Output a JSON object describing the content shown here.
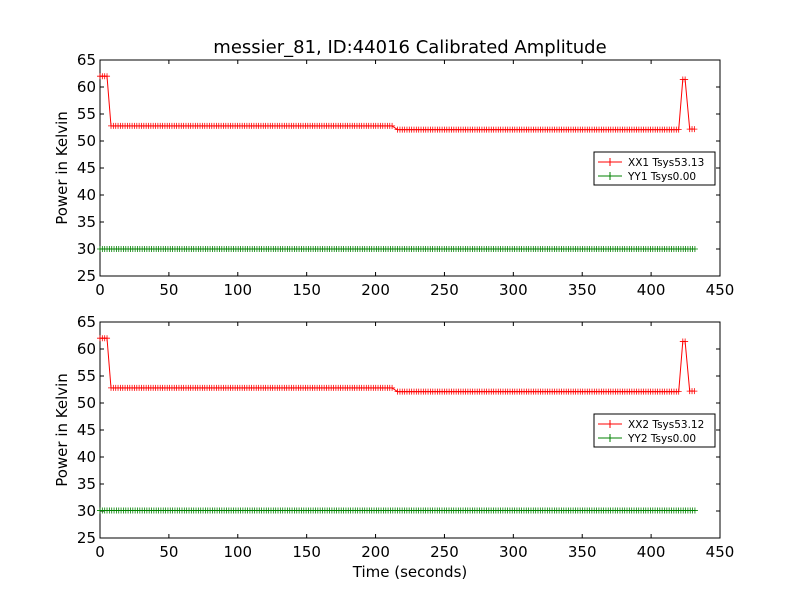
{
  "chart_data": [
    {
      "type": "line",
      "title": "messier_81, ID:44016 Calibrated Amplitude",
      "xlabel": "",
      "ylabel": "Power in Kelvin",
      "xlim": [
        0,
        450
      ],
      "ylim": [
        25,
        65
      ],
      "xticks": [
        "0",
        "50",
        "100",
        "150",
        "200",
        "250",
        "300",
        "350",
        "400",
        "450"
      ],
      "yticks": [
        "25",
        "30",
        "35",
        "40",
        "45",
        "50",
        "55",
        "60",
        "65"
      ],
      "grid": false,
      "legend": "center-right",
      "series": [
        {
          "name": "XX1 Tsys53.13",
          "color": "#ff0000",
          "marker": "+",
          "segments": [
            {
              "x_start": 0,
              "x_end": 6,
              "y": 62.0
            },
            {
              "x_start": 8,
              "x_end": 212,
              "y": 52.8
            },
            {
              "x_start": 216,
              "x_end": 420,
              "y": 52.1
            },
            {
              "x_start": 423,
              "x_end": 426,
              "y": 61.4
            },
            {
              "x_start": 428,
              "x_end": 433,
              "y": 52.2
            }
          ]
        },
        {
          "name": "YY1 Tsys0.00",
          "color": "#008000",
          "marker": "+",
          "segments": [
            {
              "x_start": 0,
              "x_end": 433,
              "y": 30.0
            }
          ]
        }
      ]
    },
    {
      "type": "line",
      "title": "",
      "xlabel": "Time (seconds)",
      "ylabel": "Power in Kelvin",
      "xlim": [
        0,
        450
      ],
      "ylim": [
        25,
        65
      ],
      "xticks": [
        "0",
        "50",
        "100",
        "150",
        "200",
        "250",
        "300",
        "350",
        "400",
        "450"
      ],
      "yticks": [
        "25",
        "30",
        "35",
        "40",
        "45",
        "50",
        "55",
        "60",
        "65"
      ],
      "grid": false,
      "legend": "center-right",
      "series": [
        {
          "name": "XX2 Tsys53.12",
          "color": "#ff0000",
          "marker": "+",
          "segments": [
            {
              "x_start": 0,
              "x_end": 6,
              "y": 62.0
            },
            {
              "x_start": 8,
              "x_end": 212,
              "y": 52.8
            },
            {
              "x_start": 216,
              "x_end": 420,
              "y": 52.1
            },
            {
              "x_start": 423,
              "x_end": 426,
              "y": 61.4
            },
            {
              "x_start": 428,
              "x_end": 433,
              "y": 52.2
            }
          ]
        },
        {
          "name": "YY2 Tsys0.00",
          "color": "#008000",
          "marker": "+",
          "segments": [
            {
              "x_start": 0,
              "x_end": 433,
              "y": 30.1
            }
          ]
        }
      ]
    }
  ]
}
